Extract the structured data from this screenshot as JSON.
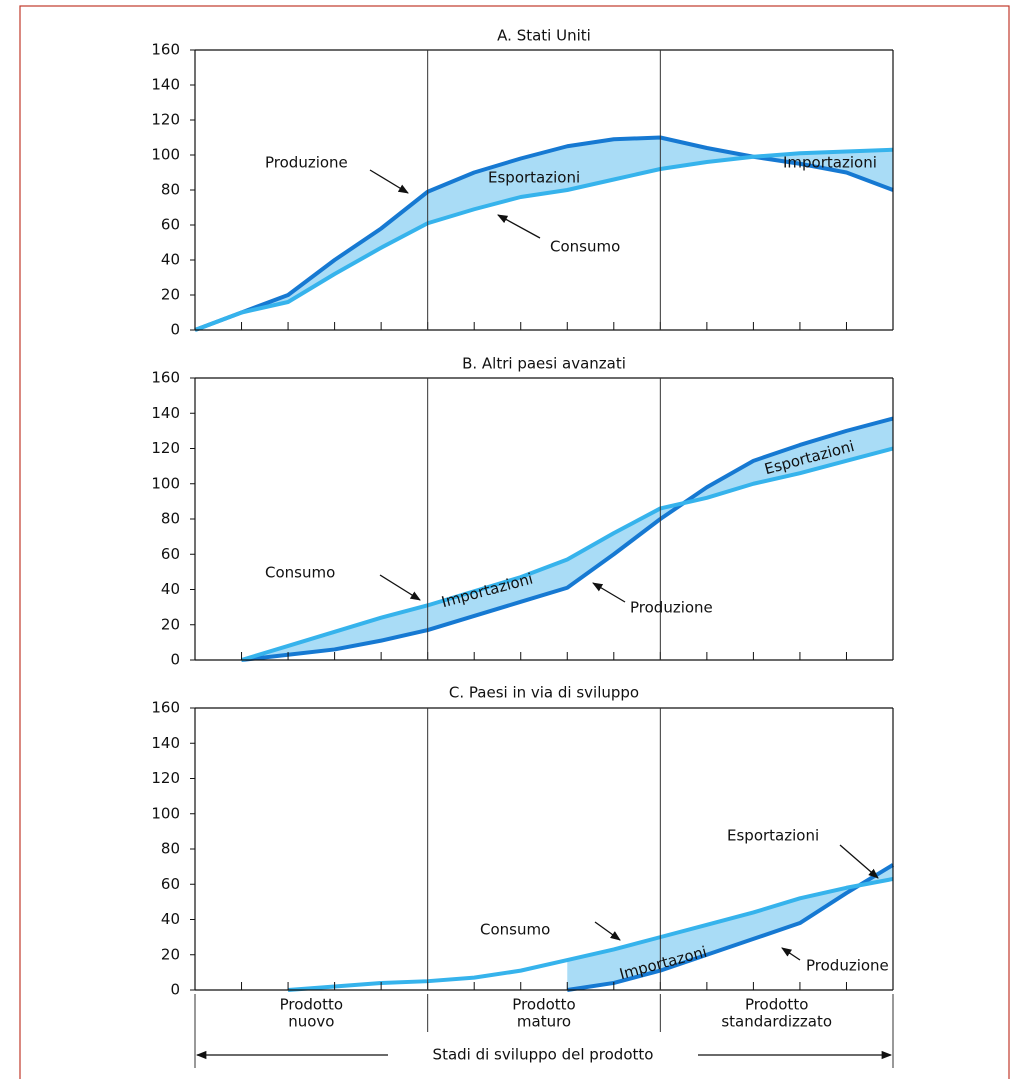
{
  "chart_data": [
    {
      "type": "line",
      "title": "A. Stati Uniti",
      "x": [
        0,
        1,
        2,
        3,
        4,
        5,
        6,
        7,
        8,
        9,
        10,
        11,
        12,
        13,
        14,
        15
      ],
      "series": [
        {
          "name": "Produzione",
          "color": "#1679d2",
          "values": [
            0,
            10,
            20,
            40,
            58,
            79,
            90,
            98,
            105,
            109,
            110,
            104,
            99,
            95,
            90,
            80
          ]
        },
        {
          "name": "Consumo",
          "color": "#36b3ec",
          "values": [
            0,
            10,
            16,
            32,
            47,
            61,
            69,
            76,
            80,
            86,
            92,
            96,
            99,
            101,
            102,
            103
          ]
        }
      ],
      "annotations": [
        "Produzione",
        "Esportazioni",
        "Consumo",
        "Importazioni"
      ],
      "xlim": [
        0,
        15
      ],
      "xticks": [
        0,
        1,
        2,
        3,
        4,
        5,
        6,
        7,
        8,
        9,
        10,
        11,
        12,
        13,
        14,
        15
      ],
      "ylim": [
        0,
        160
      ],
      "yticks": [
        0,
        20,
        40,
        60,
        80,
        100,
        120,
        140,
        160
      ]
    },
    {
      "type": "line",
      "title": "B. Altri paesi avanzati",
      "x": [
        0,
        1,
        2,
        3,
        4,
        5,
        6,
        7,
        8,
        9,
        10,
        11,
        12,
        13,
        14,
        15
      ],
      "series": [
        {
          "name": "Produzione",
          "color": "#1679d2",
          "values": [
            null,
            0,
            3,
            6,
            11,
            17,
            25,
            33,
            41,
            60,
            80,
            98,
            113,
            122,
            130,
            137
          ]
        },
        {
          "name": "Consumo",
          "color": "#36b3ec",
          "values": [
            null,
            0,
            8,
            16,
            24,
            31,
            39,
            47,
            57,
            72,
            86,
            92,
            100,
            106,
            113,
            120
          ]
        }
      ],
      "annotations": [
        "Consumo",
        "Importazioni",
        "Produzione",
        "Esportazioni"
      ],
      "xlim": [
        0,
        15
      ],
      "xticks": [
        0,
        1,
        2,
        3,
        4,
        5,
        6,
        7,
        8,
        9,
        10,
        11,
        12,
        13,
        14,
        15
      ],
      "ylim": [
        0,
        160
      ],
      "yticks": [
        0,
        20,
        40,
        60,
        80,
        100,
        120,
        140,
        160
      ]
    },
    {
      "type": "line",
      "title": "C. Paesi in via di sviluppo",
      "x": [
        0,
        1,
        2,
        3,
        4,
        5,
        6,
        7,
        8,
        9,
        10,
        11,
        12,
        13,
        14,
        15
      ],
      "series": [
        {
          "name": "Produzione",
          "color": "#1679d2",
          "values": [
            null,
            null,
            null,
            null,
            null,
            null,
            null,
            null,
            0,
            4,
            11,
            20,
            29,
            38,
            55,
            71
          ]
        },
        {
          "name": "Consumo",
          "color": "#36b3ec",
          "values": [
            null,
            null,
            0,
            2,
            4,
            5,
            7,
            11,
            17,
            23,
            30,
            37,
            44,
            52,
            58,
            63
          ]
        }
      ],
      "annotations": [
        "Esportazioni",
        "Consumo",
        "Importazoni",
        "Produzione"
      ],
      "xlim": [
        0,
        15
      ],
      "xticks": [
        0,
        1,
        2,
        3,
        4,
        5,
        6,
        7,
        8,
        9,
        10,
        11,
        12,
        13,
        14,
        15
      ],
      "ylim": [
        0,
        160
      ],
      "yticks": [
        0,
        20,
        40,
        60,
        80,
        100,
        120,
        140,
        160
      ]
    }
  ],
  "dividers": [
    5,
    10
  ],
  "stages": [
    [
      "Prodotto",
      "nuovo"
    ],
    [
      "Prodotto",
      "maturo"
    ],
    [
      "Prodotto",
      "standardizzato"
    ]
  ],
  "xlabel": "Stadi di sviluppo del prodotto"
}
